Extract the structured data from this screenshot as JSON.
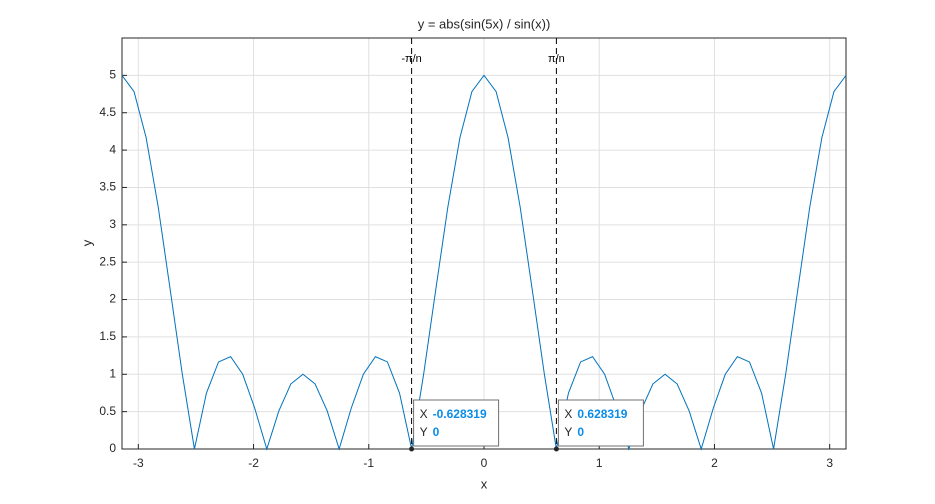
{
  "chart_data": {
    "type": "line",
    "title": "y = abs(sin(5x) / sin(x))",
    "xlabel": "x",
    "ylabel": "y",
    "x": [
      -3.142,
      -3.037,
      -2.932,
      -2.827,
      -2.723,
      -2.618,
      -2.513,
      -2.409,
      -2.304,
      -2.199,
      -2.094,
      -1.99,
      -1.885,
      -1.78,
      -1.676,
      -1.571,
      -1.466,
      -1.361,
      -1.257,
      -1.152,
      -1.047,
      -0.942,
      -0.838,
      -0.733,
      -0.628,
      -0.524,
      -0.419,
      -0.314,
      -0.209,
      -0.105,
      0,
      0.105,
      0.209,
      0.314,
      0.419,
      0.524,
      0.628,
      0.733,
      0.838,
      0.942,
      1.047,
      1.152,
      1.257,
      1.361,
      1.466,
      1.571,
      1.676,
      1.78,
      1.885,
      1.99,
      2.094,
      2.199,
      2.304,
      2.409,
      2.513,
      2.618,
      2.723,
      2.827,
      2.932,
      3.037,
      3.142
    ],
    "series": [
      {
        "color": "#0072bd",
        "values": [
          5,
          4.783,
          4.165,
          3.236,
          2.129,
          1.0,
          0,
          0.747,
          1.165,
          1.236,
          1.0,
          0.547,
          0,
          0.511,
          0.871,
          1,
          0.871,
          0.511,
          0,
          0.547,
          1.0,
          1.236,
          1.165,
          0.747,
          0,
          1.0,
          2.129,
          3.236,
          4.165,
          4.783,
          5,
          4.783,
          4.165,
          3.236,
          2.129,
          1.0,
          0,
          0.747,
          1.165,
          1.236,
          1.0,
          0.547,
          0,
          0.511,
          0.871,
          1,
          0.871,
          0.511,
          0,
          0.547,
          1.0,
          1.236,
          1.165,
          0.747,
          0,
          1.0,
          2.129,
          3.236,
          4.165,
          4.783,
          5
        ]
      }
    ],
    "xlim": [
      -3.1416,
      3.1416
    ],
    "xticks": [
      -3,
      -2,
      -1,
      0,
      1,
      2,
      3
    ],
    "ylim": [
      0,
      5.5
    ],
    "yticks": [
      0,
      0.5,
      1,
      1.5,
      2,
      2.5,
      3,
      3.5,
      4,
      4.5,
      5
    ],
    "grid": true,
    "vlines": [
      {
        "x": -0.628319,
        "label": "-π/n"
      },
      {
        "x": 0.628319,
        "label": "π/n"
      }
    ],
    "datatips": [
      {
        "x": -0.628319,
        "y": 0,
        "x_label": "X",
        "y_label": "Y"
      },
      {
        "x": 0.628319,
        "y": 0,
        "x_label": "X",
        "y_label": "Y"
      }
    ]
  }
}
